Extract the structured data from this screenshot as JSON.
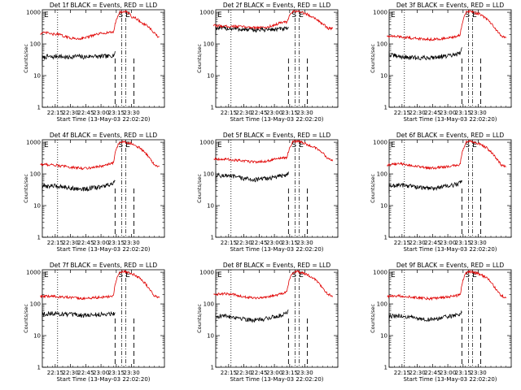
{
  "common": {
    "xlabel": "Start Time (13-May-03 22:02:20)",
    "ylabel": "Counts/sec",
    "x_ticks": [
      "22:15",
      "22:30",
      "22:45",
      "23:00",
      "23:15",
      "23:30"
    ],
    "y_ticks": [
      "1",
      "10",
      "100",
      "1000"
    ],
    "markers": {
      "e_left": "E",
      "s": "S",
      "e_right": "E"
    }
  },
  "chart_data": [
    {
      "type": "line",
      "title": "Det 1f BLACK = Events, RED = LLD",
      "x_range_min": [
        -3,
        40
      ],
      "y_scale": "log",
      "ylim": [
        1,
        1200
      ],
      "series": [
        {
          "name": "Events",
          "color": "#000000",
          "x": [
            0,
            5,
            10,
            15,
            20,
            25,
            30,
            35,
            40,
            45,
            50,
            55,
            60,
            65,
            70,
            71.5
          ],
          "values": [
            35,
            40,
            38,
            42,
            39,
            37,
            40,
            41,
            38,
            40,
            42,
            39,
            41,
            40,
            45,
            50
          ]
        },
        {
          "name": "LLD",
          "color": "#e00000",
          "x": [
            -2,
            5,
            10,
            15,
            20,
            25,
            30,
            35,
            40,
            45,
            50,
            55,
            60,
            65,
            70,
            73,
            76,
            80,
            84,
            88,
            92,
            96,
            100,
            104,
            108,
            112,
            115
          ],
          "values": [
            215,
            225,
            200,
            205,
            180,
            160,
            150,
            145,
            155,
            165,
            185,
            205,
            220,
            230,
            235,
            600,
            1000,
            1050,
            1000,
            700,
            650,
            500,
            420,
            350,
            250,
            185,
            160
          ]
        }
      ]
    },
    {
      "type": "line",
      "title": "Det 2f BLACK = Events, RED = LLD",
      "x_range_min": [
        -3,
        40
      ],
      "y_scale": "log",
      "ylim": [
        1,
        1200
      ],
      "series": [
        {
          "name": "Events",
          "color": "#000000",
          "x": [
            0,
            10,
            20,
            30,
            40,
            50,
            60,
            70,
            71.5
          ],
          "values": [
            320,
            310,
            300,
            280,
            275,
            285,
            290,
            300,
            300
          ]
        },
        {
          "name": "LLD",
          "color": "#e00000",
          "x": [
            -2,
            10,
            20,
            30,
            40,
            50,
            60,
            65,
            70,
            73,
            76,
            80,
            88,
            96,
            104,
            110,
            115
          ],
          "values": [
            380,
            360,
            360,
            340,
            330,
            330,
            420,
            480,
            480,
            800,
            1050,
            1100,
            900,
            700,
            450,
            310,
            300
          ]
        }
      ]
    },
    {
      "type": "line",
      "title": "Det 3f BLACK = Events, RED = LLD",
      "x_range_min": [
        -3,
        40
      ],
      "y_scale": "log",
      "ylim": [
        1,
        1200
      ],
      "series": [
        {
          "name": "Events",
          "color": "#000000",
          "x": [
            0,
            10,
            20,
            30,
            40,
            50,
            60,
            65,
            70,
            71.5
          ],
          "values": [
            45,
            40,
            37,
            36,
            37,
            40,
            42,
            45,
            50,
            70
          ]
        },
        {
          "name": "LLD",
          "color": "#e00000",
          "x": [
            -2,
            10,
            20,
            30,
            40,
            50,
            60,
            65,
            70,
            73,
            76,
            80,
            88,
            96,
            104,
            110,
            115
          ],
          "values": [
            175,
            170,
            155,
            145,
            140,
            145,
            155,
            165,
            200,
            600,
            1000,
            1050,
            900,
            600,
            300,
            180,
            160
          ]
        }
      ]
    },
    {
      "type": "line",
      "title": "Det 4f BLACK = Events, RED = LLD",
      "x_range_min": [
        -3,
        40
      ],
      "y_scale": "log",
      "ylim": [
        1,
        1200
      ],
      "series": [
        {
          "name": "Events",
          "color": "#000000",
          "x": [
            0,
            10,
            20,
            30,
            40,
            50,
            60,
            65,
            70,
            71.5
          ],
          "values": [
            40,
            42,
            40,
            35,
            33,
            36,
            40,
            45,
            50,
            55
          ]
        },
        {
          "name": "LLD",
          "color": "#e00000",
          "x": [
            -2,
            10,
            20,
            30,
            40,
            50,
            60,
            65,
            70,
            73,
            76,
            80,
            88,
            96,
            104,
            110,
            115
          ],
          "values": [
            200,
            195,
            175,
            160,
            150,
            160,
            180,
            200,
            220,
            650,
            1000,
            1050,
            900,
            650,
            350,
            190,
            170
          ]
        }
      ]
    },
    {
      "type": "line",
      "title": "Det 5f BLACK = Events, RED = LLD",
      "x_range_min": [
        -3,
        40
      ],
      "y_scale": "log",
      "ylim": [
        1,
        1200
      ],
      "series": [
        {
          "name": "Events",
          "color": "#000000",
          "x": [
            0,
            10,
            20,
            30,
            40,
            50,
            60,
            65,
            70,
            71.5
          ],
          "values": [
            90,
            88,
            80,
            70,
            65,
            72,
            80,
            88,
            95,
            110
          ]
        },
        {
          "name": "LLD",
          "color": "#e00000",
          "x": [
            -2,
            10,
            20,
            30,
            40,
            50,
            60,
            65,
            70,
            73,
            76,
            80,
            88,
            96,
            104,
            110,
            115
          ],
          "values": [
            300,
            290,
            270,
            250,
            240,
            250,
            300,
            320,
            310,
            700,
            1050,
            1100,
            900,
            700,
            500,
            300,
            280
          ]
        }
      ]
    },
    {
      "type": "line",
      "title": "Det 6f BLACK = Events, RED = LLD",
      "x_range_min": [
        -3,
        40
      ],
      "y_scale": "log",
      "ylim": [
        1,
        1200
      ],
      "series": [
        {
          "name": "Events",
          "color": "#000000",
          "x": [
            0,
            10,
            20,
            30,
            40,
            50,
            60,
            65,
            70,
            71.5
          ],
          "values": [
            40,
            45,
            42,
            37,
            35,
            38,
            42,
            46,
            52,
            60
          ]
        },
        {
          "name": "LLD",
          "color": "#e00000",
          "x": [
            -2,
            10,
            20,
            30,
            40,
            50,
            60,
            65,
            70,
            73,
            76,
            80,
            88,
            96,
            104,
            110,
            115
          ],
          "values": [
            190,
            210,
            190,
            165,
            150,
            160,
            175,
            185,
            200,
            650,
            1000,
            1050,
            900,
            650,
            350,
            190,
            170
          ]
        }
      ]
    },
    {
      "type": "line",
      "title": "Det 7f BLACK = Events, RED = LLD",
      "x_range_min": [
        -3,
        40
      ],
      "y_scale": "log",
      "ylim": [
        1,
        1200
      ],
      "series": [
        {
          "name": "Events",
          "color": "#000000",
          "x": [
            0,
            10,
            20,
            30,
            40,
            50,
            60,
            65,
            70,
            71.5
          ],
          "values": [
            48,
            50,
            48,
            45,
            43,
            45,
            47,
            49,
            50,
            52
          ]
        },
        {
          "name": "LLD",
          "color": "#e00000",
          "x": [
            -2,
            10,
            20,
            30,
            40,
            50,
            60,
            65,
            70,
            73,
            76,
            80,
            88,
            96,
            104,
            110,
            115
          ],
          "values": [
            170,
            175,
            165,
            155,
            150,
            155,
            165,
            170,
            180,
            600,
            1000,
            1050,
            900,
            650,
            320,
            175,
            160
          ]
        }
      ]
    },
    {
      "type": "line",
      "title": "Det 8f BLACK = Events, RED = LLD",
      "x_range_min": [
        -3,
        40
      ],
      "y_scale": "log",
      "ylim": [
        1,
        1200
      ],
      "series": [
        {
          "name": "Events",
          "color": "#000000",
          "x": [
            0,
            10,
            20,
            30,
            40,
            50,
            60,
            65,
            70,
            71.5
          ],
          "values": [
            40,
            42,
            38,
            33,
            30,
            35,
            40,
            45,
            55,
            65
          ]
        },
        {
          "name": "LLD",
          "color": "#e00000",
          "x": [
            -2,
            10,
            20,
            30,
            40,
            50,
            60,
            65,
            70,
            73,
            76,
            80,
            88,
            96,
            104,
            110,
            115
          ],
          "values": [
            200,
            210,
            190,
            165,
            155,
            165,
            190,
            215,
            240,
            650,
            1000,
            1050,
            900,
            650,
            350,
            200,
            180
          ]
        }
      ]
    },
    {
      "type": "line",
      "title": "Det 9f BLACK = Events, RED = LLD",
      "x_range_min": [
        -3,
        40
      ],
      "y_scale": "log",
      "ylim": [
        1,
        1200
      ],
      "series": [
        {
          "name": "Events",
          "color": "#000000",
          "x": [
            0,
            10,
            20,
            30,
            40,
            50,
            60,
            65,
            70,
            71.5
          ],
          "values": [
            40,
            42,
            38,
            34,
            32,
            35,
            40,
            44,
            50,
            55
          ]
        },
        {
          "name": "LLD",
          "color": "#e00000",
          "x": [
            -2,
            10,
            20,
            30,
            40,
            50,
            60,
            65,
            70,
            73,
            76,
            80,
            88,
            96,
            104,
            110,
            115
          ],
          "values": [
            170,
            180,
            170,
            155,
            145,
            155,
            170,
            180,
            190,
            600,
            1000,
            1050,
            900,
            650,
            320,
            180,
            160
          ]
        }
      ]
    }
  ]
}
